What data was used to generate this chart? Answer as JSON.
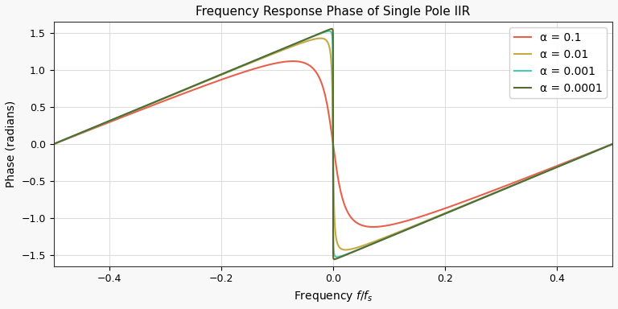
{
  "title": "Frequency Response Phase of Single Pole IIR",
  "xlabel": "Frequency $f/f_s$",
  "ylabel": "Phase (radians)",
  "alphas": [
    0.1,
    0.01,
    0.001,
    0.0001
  ],
  "alpha_labels": [
    "α = 0.1",
    "α = 0.01",
    "α = 0.001",
    "α = 0.0001"
  ],
  "colors": [
    "#E8604C",
    "#C8A840",
    "#4EC9B0",
    "#556B2F"
  ],
  "xlim": [
    -0.5,
    0.5
  ],
  "ylim": [
    -1.65,
    1.65
  ],
  "yticks": [
    -1.5,
    -1.0,
    -0.5,
    0.0,
    0.5,
    1.0,
    1.5
  ],
  "xticks": [
    -0.4,
    -0.2,
    0.0,
    0.2,
    0.4
  ],
  "figsize": [
    7.68,
    3.84
  ],
  "dpi": 100,
  "plot_bg": "#ffffff",
  "fig_bg": "#f8f8f8",
  "grid_color": "#dddddd",
  "linewidth": 1.5,
  "title_fontsize": 11,
  "label_fontsize": 10,
  "tick_fontsize": 9,
  "legend_fontsize": 10
}
